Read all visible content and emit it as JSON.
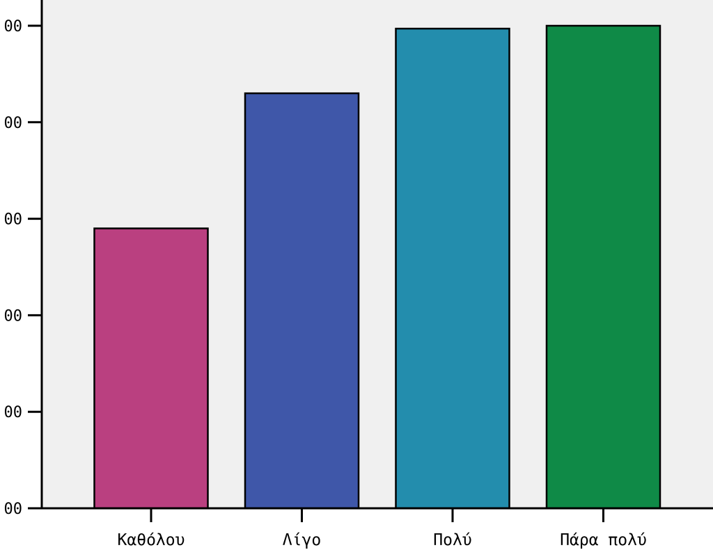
{
  "chart_data": {
    "type": "bar",
    "categories": [
      "Καθόλου",
      "Λίγο",
      "Πολύ",
      "Πάρα πολύ"
    ],
    "values": [
      2.9,
      4.3,
      4.97,
      5.0
    ],
    "ylim": [
      0,
      5
    ],
    "y_ticks": [
      0,
      1,
      2,
      3,
      4,
      5
    ],
    "y_tick_labels": [
      "00",
      "00",
      "00",
      "00",
      "00",
      "00"
    ],
    "colors": [
      "#BA4080",
      "#3F57A9",
      "#238DAD",
      "#0F8A47"
    ],
    "plot_background": "#F0F0F0",
    "grid": false,
    "legend": "none"
  }
}
